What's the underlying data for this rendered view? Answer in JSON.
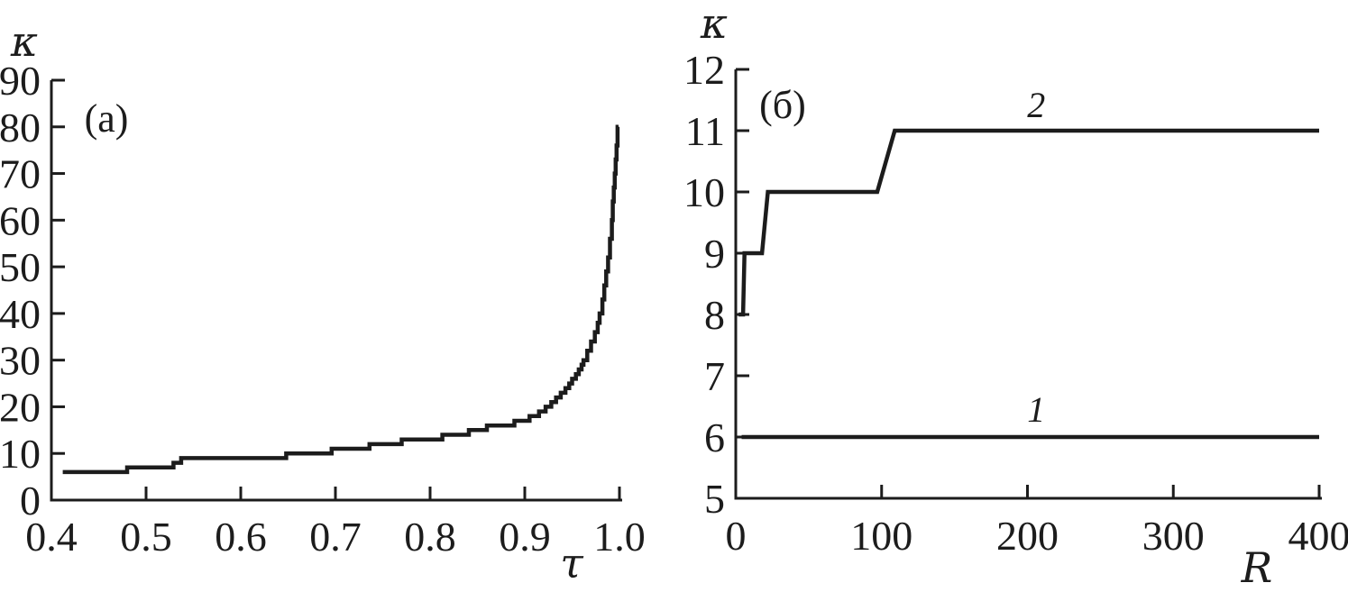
{
  "figure": {
    "background": "#ffffff",
    "line_color": "#1c1c1c"
  },
  "chart_data": [
    {
      "type": "line",
      "panel_label": "(a)",
      "xlabel": "τ",
      "ylabel": "κ",
      "xlim": [
        0.4,
        1.0
      ],
      "ylim": [
        0,
        90
      ],
      "grid": false,
      "legend_position": "none",
      "xtick_values": [
        0.4,
        0.5,
        0.6,
        0.7,
        0.8,
        0.9,
        1.0
      ],
      "xtick_labels": [
        "0.4",
        "0.5",
        "0.6",
        "0.7",
        "0.8",
        "0.9",
        "1.0"
      ],
      "ytick_values": [
        0,
        10,
        20,
        30,
        40,
        50,
        60,
        70,
        80,
        90
      ],
      "ytick_labels": [
        "0",
        "10",
        "20",
        "30",
        "40",
        "50",
        "60",
        "70",
        "80",
        "90"
      ],
      "series": [
        {
          "name": "kappa-of-tau-staircase",
          "label": "",
          "draw": "step",
          "points": [
            [
              0.412,
              6
            ],
            [
              0.48,
              7
            ],
            [
              0.529,
              8
            ],
            [
              0.537,
              9
            ],
            [
              0.648,
              10
            ],
            [
              0.696,
              11
            ],
            [
              0.736,
              12
            ],
            [
              0.77,
              13
            ],
            [
              0.813,
              14
            ],
            [
              0.841,
              15
            ],
            [
              0.86,
              16
            ],
            [
              0.889,
              17
            ],
            [
              0.905,
              18
            ],
            [
              0.915,
              19
            ],
            [
              0.922,
              20
            ],
            [
              0.928,
              21
            ],
            [
              0.933,
              22
            ],
            [
              0.938,
              23
            ],
            [
              0.943,
              24
            ],
            [
              0.947,
              25
            ],
            [
              0.95,
              26
            ],
            [
              0.954,
              27
            ],
            [
              0.957,
              28
            ],
            [
              0.96,
              29
            ],
            [
              0.962,
              30
            ],
            [
              0.966,
              32
            ],
            [
              0.97,
              34
            ],
            [
              0.974,
              36
            ],
            [
              0.977,
              38
            ],
            [
              0.979,
              40
            ],
            [
              0.982,
              43
            ],
            [
              0.984,
              46
            ],
            [
              0.986,
              49
            ],
            [
              0.988,
              52
            ],
            [
              0.99,
              56
            ],
            [
              0.992,
              60
            ],
            [
              0.993,
              64
            ],
            [
              0.994,
              67
            ],
            [
              0.995,
              70
            ],
            [
              0.996,
              73
            ],
            [
              0.997,
              76
            ],
            [
              0.998,
              80
            ],
            [
              0.999,
              80
            ]
          ]
        }
      ]
    },
    {
      "type": "line",
      "panel_label": "(б)",
      "xlabel": "R",
      "ylabel": "κ",
      "xlim": [
        0,
        400
      ],
      "ylim": [
        5,
        12
      ],
      "grid": false,
      "legend_position": "none",
      "xtick_values": [
        0,
        100,
        200,
        300,
        400
      ],
      "xtick_labels": [
        "0",
        "100",
        "200",
        "300",
        "400"
      ],
      "ytick_values": [
        5,
        6,
        7,
        8,
        9,
        10,
        11,
        12
      ],
      "ytick_labels": [
        "5",
        "6",
        "7",
        "8",
        "9",
        "10",
        "11",
        "12"
      ],
      "series": [
        {
          "name": "curve-1",
          "label": "1",
          "draw": "linear",
          "points": [
            [
              4,
              6
            ],
            [
              400,
              6
            ]
          ],
          "label_at": [
            206,
            6.25
          ]
        },
        {
          "name": "curve-2",
          "label": "2",
          "draw": "linear",
          "points": [
            [
              2,
              8
            ],
            [
              5,
              8
            ],
            [
              6,
              9
            ],
            [
              18,
              9
            ],
            [
              22,
              10
            ],
            [
              97,
              10
            ],
            [
              109,
              11
            ],
            [
              400,
              11
            ]
          ],
          "label_at": [
            206,
            11.22
          ]
        }
      ]
    }
  ]
}
